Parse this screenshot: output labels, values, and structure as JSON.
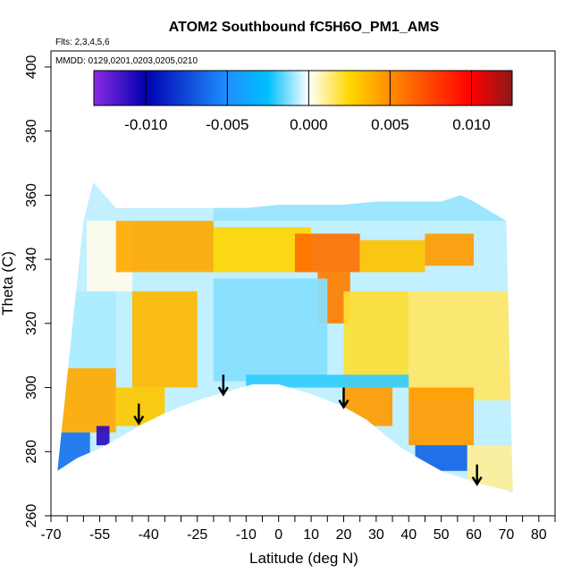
{
  "chart_data": {
    "type": "heatmap",
    "title": "ATOM2 Southbound fC5H6O_PM1_AMS",
    "flights_label": "Flts: 2,3,4,5,6",
    "dates_label": "MMDD: 0129,0201,0203,0205,0210",
    "xlabel": "Latitude (deg N)",
    "ylabel": "Theta (C)",
    "xlim": [
      -70,
      85
    ],
    "ylim": [
      260,
      405
    ],
    "x_ticks": [
      -70,
      -65,
      -60,
      -55,
      -50,
      -45,
      -40,
      -35,
      -30,
      -25,
      -20,
      -15,
      -10,
      -5,
      0,
      5,
      10,
      15,
      20,
      25,
      30,
      35,
      40,
      45,
      50,
      55,
      60,
      65,
      70,
      75,
      80,
      85
    ],
    "x_tick_labels": [
      "-70",
      "",
      "",
      "-55",
      "",
      "",
      "-40",
      "",
      "",
      "-25",
      "",
      "",
      "-10",
      "",
      "0",
      "",
      "10",
      "",
      "20",
      "",
      "30",
      "",
      "40",
      "",
      "50",
      "",
      "60",
      "",
      "70",
      "",
      "80",
      ""
    ],
    "y_ticks": [
      260,
      280,
      300,
      320,
      340,
      360,
      380,
      400
    ],
    "y_tick_labels": [
      "260",
      "280",
      "300",
      "320",
      "340",
      "360",
      "380",
      "400"
    ],
    "colorbar": {
      "ticks": [
        -0.01,
        -0.005,
        0.0,
        0.005,
        0.01
      ],
      "tick_labels": [
        "-0.010",
        "-0.005",
        "0.000",
        "0.005",
        "0.010"
      ],
      "range": [
        -0.0132,
        0.0125
      ],
      "color_stops": [
        {
          "value": -0.0132,
          "color": "#8a2be2"
        },
        {
          "value": -0.01,
          "color": "#0000b0"
        },
        {
          "value": -0.005,
          "color": "#1e90ff"
        },
        {
          "value": -0.0025,
          "color": "#00bfff"
        },
        {
          "value": 0.0,
          "color": "#ffffff"
        },
        {
          "value": 0.0025,
          "color": "#ffd700"
        },
        {
          "value": 0.005,
          "color": "#ff8c00"
        },
        {
          "value": 0.0075,
          "color": "#ff4500"
        },
        {
          "value": 0.01,
          "color": "#ff0000"
        },
        {
          "value": 0.0125,
          "color": "#8b1a1a"
        }
      ]
    },
    "boundary_top": [
      [
        -60,
        352
      ],
      [
        -57,
        364
      ],
      [
        -50,
        356
      ],
      [
        -40,
        356
      ],
      [
        -30,
        356
      ],
      [
        -20,
        356
      ],
      [
        -10,
        356
      ],
      [
        0,
        357
      ],
      [
        10,
        357
      ],
      [
        20,
        357
      ],
      [
        30,
        358
      ],
      [
        40,
        358
      ],
      [
        50,
        358
      ],
      [
        56,
        360
      ],
      [
        60,
        358
      ],
      [
        70,
        352
      ]
    ],
    "boundary_bottom": [
      [
        -68,
        274
      ],
      [
        -62,
        278
      ],
      [
        -55,
        281
      ],
      [
        -48,
        285
      ],
      [
        -43,
        288
      ],
      [
        -35,
        292
      ],
      [
        -25,
        296
      ],
      [
        -15,
        299
      ],
      [
        -8,
        301
      ],
      [
        0,
        301
      ],
      [
        10,
        298
      ],
      [
        20,
        294
      ],
      [
        27,
        290
      ],
      [
        33,
        285
      ],
      [
        38,
        281
      ],
      [
        43,
        278
      ],
      [
        50,
        274
      ],
      [
        56,
        272
      ],
      [
        62,
        270
      ],
      [
        70,
        268
      ],
      [
        72,
        267
      ]
    ],
    "regions": [
      {
        "lat": [
          -59,
          -45
        ],
        "theta": [
          330,
          352
        ],
        "value": 0.0002
      },
      {
        "lat": [
          -50,
          -20
        ],
        "theta": [
          336,
          352
        ],
        "value": 0.004
      },
      {
        "lat": [
          -20,
          10
        ],
        "theta": [
          336,
          350
        ],
        "value": 0.0025
      },
      {
        "lat": [
          5,
          25
        ],
        "theta": [
          336,
          348
        ],
        "value": 0.006
      },
      {
        "lat": [
          12,
          22
        ],
        "theta": [
          320,
          336
        ],
        "value": 0.0055
      },
      {
        "lat": [
          25,
          45
        ],
        "theta": [
          336,
          346
        ],
        "value": 0.0032
      },
      {
        "lat": [
          45,
          60
        ],
        "theta": [
          338,
          348
        ],
        "value": 0.0045
      },
      {
        "lat": [
          -20,
          15
        ],
        "theta": [
          302,
          334
        ],
        "value": -0.0012
      },
      {
        "lat": [
          -45,
          -25
        ],
        "theta": [
          300,
          330
        ],
        "value": 0.0035
      },
      {
        "lat": [
          -68,
          -50
        ],
        "theta": [
          306,
          330
        ],
        "value": -0.0008
      },
      {
        "lat": [
          -68,
          -50
        ],
        "theta": [
          286,
          306
        ],
        "value": 0.004
      },
      {
        "lat": [
          -68,
          -58
        ],
        "theta": [
          274,
          286
        ],
        "value": -0.006
      },
      {
        "lat": [
          -56,
          -52
        ],
        "theta": [
          282,
          288
        ],
        "value": -0.011
      },
      {
        "lat": [
          -50,
          -35
        ],
        "theta": [
          288,
          300
        ],
        "value": 0.003
      },
      {
        "lat": [
          20,
          40
        ],
        "theta": [
          300,
          330
        ],
        "value": 0.002
      },
      {
        "lat": [
          20,
          35
        ],
        "theta": [
          288,
          300
        ],
        "value": 0.0045
      },
      {
        "lat": [
          40,
          72
        ],
        "theta": [
          296,
          330
        ],
        "value": 0.0015
      },
      {
        "lat": [
          40,
          60
        ],
        "theta": [
          282,
          300
        ],
        "value": 0.0045
      },
      {
        "lat": [
          42,
          58
        ],
        "theta": [
          274,
          282
        ],
        "value": -0.0065
      },
      {
        "lat": [
          58,
          72
        ],
        "theta": [
          268,
          282
        ],
        "value": 0.001
      },
      {
        "lat": [
          -20,
          70
        ],
        "theta": [
          352,
          360
        ],
        "value": -0.001
      },
      {
        "lat": [
          -10,
          40
        ],
        "theta": [
          300,
          304
        ],
        "value": -0.002
      }
    ],
    "arrows": [
      {
        "lat": -43,
        "theta": 295
      },
      {
        "lat": -17,
        "theta": 304
      },
      {
        "lat": 20,
        "theta": 300
      },
      {
        "lat": 61,
        "theta": 276
      }
    ]
  }
}
